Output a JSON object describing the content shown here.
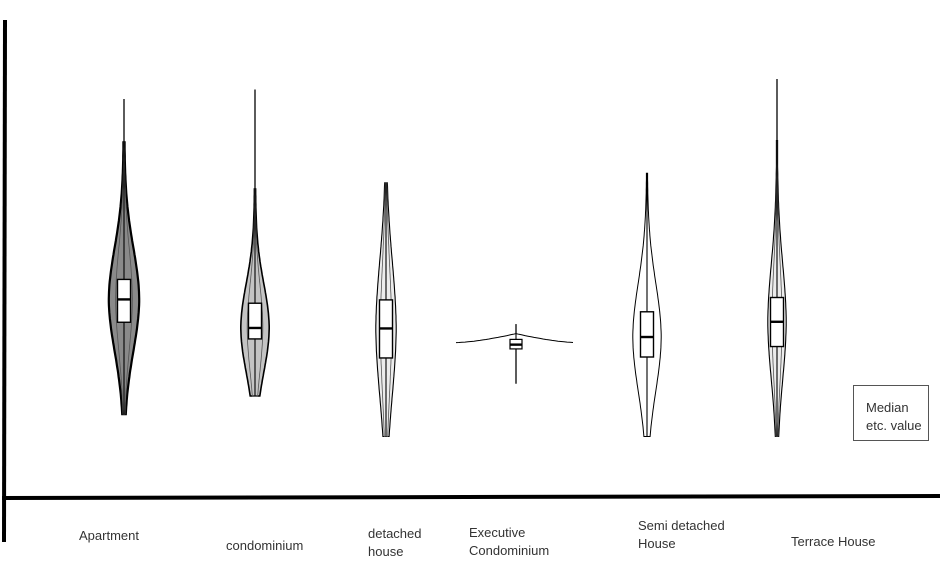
{
  "chart_data": {
    "type": "violin",
    "title": "",
    "xlabel": "",
    "ylabel": "",
    "categories": [
      "Apartment",
      "condominium",
      "detached house",
      "Executive Condominium",
      "Semi detached House",
      "Terrace House"
    ],
    "display_labels": [
      "Apartment",
      "condominium",
      "detached\nhouse",
      "Executive\nCondominium",
      "Semi detached\nHouse",
      "Terrace House"
    ],
    "ylim": [
      0,
      100
    ],
    "violins": [
      {
        "name": "Apartment",
        "min": 17.2,
        "max": 83.4,
        "q1": 36.5,
        "median": 41.3,
        "q3": 45.5,
        "max_halfwidth": 14,
        "shading": "heavy"
      },
      {
        "name": "condominium",
        "min": 21.0,
        "max": 85.4,
        "q1": 33.0,
        "median": 35.3,
        "q3": 40.5,
        "max_halfwidth": 13,
        "shading": "medium"
      },
      {
        "name": "detached house",
        "min": 12.5,
        "max": 65.8,
        "q1": 29.0,
        "median": 35.2,
        "q3": 41.2,
        "max_halfwidth": 9,
        "shading": "light"
      },
      {
        "name": "Executive Condominium",
        "min": 23.6,
        "max": 36.1,
        "q1": 30.9,
        "median": 31.8,
        "q3": 32.9,
        "max_halfwidth": 60,
        "shading": "none"
      },
      {
        "name": "Semi detached House",
        "min": 12.5,
        "max": 67.8,
        "q1": 29.2,
        "median": 33.4,
        "q3": 38.7,
        "max_halfwidth": 13,
        "shading": "none"
      },
      {
        "name": "Terrace House",
        "min": 12.5,
        "max": 87.6,
        "q1": 31.4,
        "median": 36.6,
        "q3": 41.7,
        "max_halfwidth": 8,
        "shading": "light"
      }
    ]
  },
  "legend": {
    "text": "Median\netc. value"
  }
}
